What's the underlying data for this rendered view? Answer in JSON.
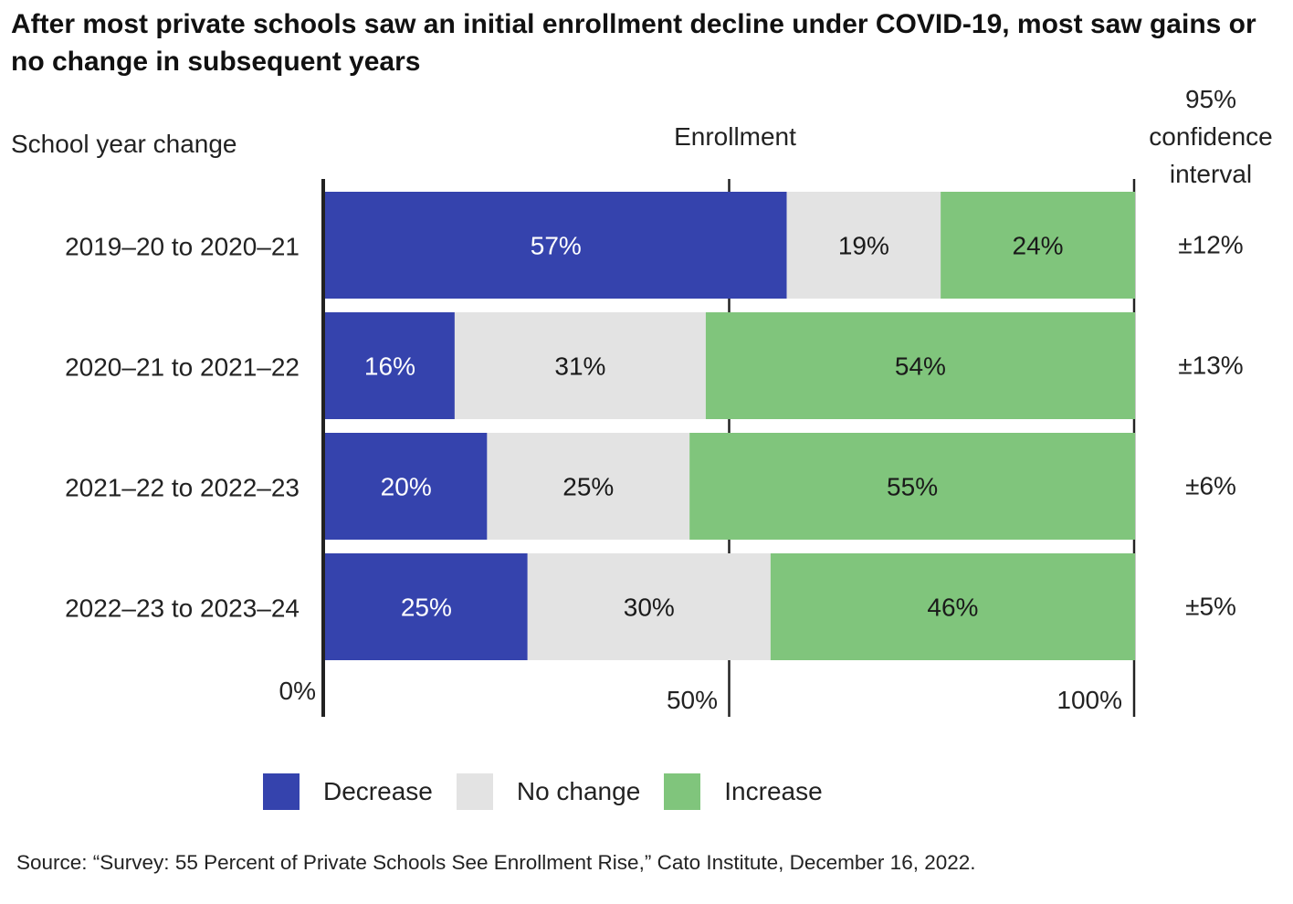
{
  "title": "After most private schools saw an initial enrollment decline under COVID-19, most saw gains or no change in subsequent years",
  "source": "Source: “Survey: 55 Percent of Private Schools See Enrollment Rise,” Cato Institute, December 16, 2022.",
  "colors": {
    "decrease": "#3543ad",
    "no_change": "#e3e3e3",
    "increase": "#80c57c"
  },
  "chart_data": {
    "type": "bar",
    "orientation": "horizontal",
    "stacked": true,
    "ylabel": "School year change",
    "xlabel": "Enrollment",
    "xlim": [
      0,
      100
    ],
    "x_ticks": [
      "0%",
      "50%",
      "100%"
    ],
    "categories": [
      "2019–20 to 2020–21",
      "2020–21 to 2021–22",
      "2021–22 to 2022–23",
      "2022–23 to 2023–24"
    ],
    "series": [
      {
        "name": "Decrease",
        "values": [
          57,
          16,
          20,
          25
        ],
        "labels": [
          "57%",
          "16%",
          "20%",
          "25%"
        ]
      },
      {
        "name": "No change",
        "values": [
          19,
          31,
          25,
          30
        ],
        "labels": [
          "19%",
          "31%",
          "25%",
          "30%"
        ]
      },
      {
        "name": "Increase",
        "values": [
          24,
          54,
          55,
          46
        ],
        "labels": [
          "24%",
          "54%",
          "55%",
          "46%"
        ]
      }
    ],
    "ci_header": [
      "95%",
      "confidence",
      "interval"
    ],
    "confidence_intervals": [
      "±12%",
      "±13%",
      "±6%",
      "±5%"
    ],
    "legend_position": "bottom"
  }
}
